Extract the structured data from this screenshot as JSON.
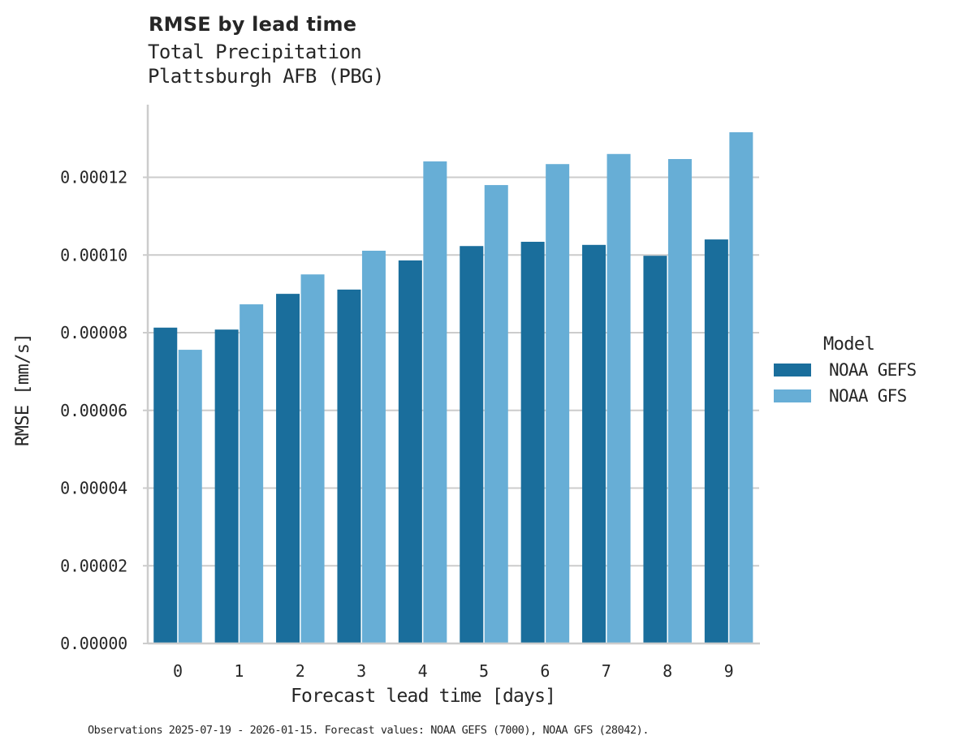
{
  "header": {
    "title": "RMSE by lead time",
    "subtitle_line1": "Total Precipitation",
    "subtitle_line2": "Plattsburgh AFB (PBG)"
  },
  "axes": {
    "xlabel": "Forecast lead time [days]",
    "ylabel": "RMSE [mm/s]",
    "yticks": [
      "0.00000",
      "0.00002",
      "0.00004",
      "0.00006",
      "0.00008",
      "0.00010",
      "0.00012"
    ],
    "xticks": [
      "0",
      "1",
      "2",
      "3",
      "4",
      "5",
      "6",
      "7",
      "8",
      "9"
    ]
  },
  "legend": {
    "title": "Model",
    "items": [
      {
        "label": "NOAA GEFS",
        "color": "#1a6e9c"
      },
      {
        "label": "NOAA GFS",
        "color": "#67aed6"
      }
    ]
  },
  "footer": {
    "text": "Observations 2025-07-19 - 2026-01-15. Forecast values: NOAA GEFS (7000), NOAA GFS (28042)."
  },
  "chart_data": {
    "type": "bar",
    "title": "RMSE by lead time",
    "subtitle": "Total Precipitation — Plattsburgh AFB (PBG)",
    "xlabel": "Forecast lead time [days]",
    "ylabel": "RMSE [mm/s]",
    "categories": [
      "0",
      "1",
      "2",
      "3",
      "4",
      "5",
      "6",
      "7",
      "8",
      "9"
    ],
    "series": [
      {
        "name": "NOAA GEFS",
        "color": "#1a6e9c",
        "values": [
          8.13e-05,
          8.08e-05,
          9e-05,
          9.11e-05,
          9.86e-05,
          0.0001023,
          0.0001034,
          0.0001026,
          9.98e-05,
          0.000104
        ]
      },
      {
        "name": "NOAA GFS",
        "color": "#67aed6",
        "values": [
          7.56e-05,
          8.73e-05,
          9.5e-05,
          0.0001011,
          0.0001241,
          0.000118,
          0.0001234,
          0.000126,
          0.0001247,
          0.0001316
        ]
      }
    ],
    "ylim": [
      0,
      0.000138
    ],
    "yticks": [
      0,
      2e-05,
      4e-05,
      6e-05,
      8e-05,
      0.0001,
      0.00012
    ],
    "grid": "horizontal",
    "legend_position": "right"
  }
}
